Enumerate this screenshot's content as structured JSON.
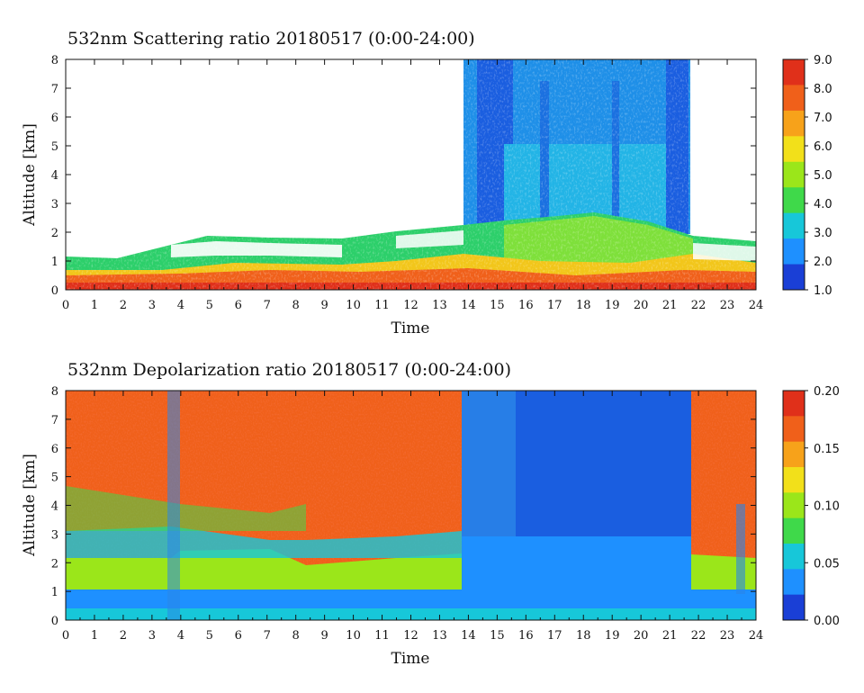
{
  "chart_data": [
    {
      "type": "heatmap",
      "title": "532nm Scattering ratio  20180517 (0:00-24:00)",
      "xlabel": "Time",
      "ylabel": "Altitude [km]",
      "xlim": [
        0,
        24
      ],
      "ylim": [
        0,
        8
      ],
      "x_ticks": [
        "0",
        "1",
        "2",
        "3",
        "4",
        "5",
        "6",
        "7",
        "8",
        "9",
        "10",
        "11",
        "12",
        "13",
        "14",
        "15",
        "16",
        "17",
        "18",
        "19",
        "20",
        "21",
        "22",
        "23",
        "24"
      ],
      "y_ticks": [
        "0",
        "1",
        "2",
        "3",
        "4",
        "5",
        "6",
        "7",
        "8"
      ],
      "colorbar": {
        "min": 1.0,
        "max": 9.0,
        "ticks": [
          "1.0",
          "2.0",
          "3.0",
          "4.0",
          "5.0",
          "6.0",
          "7.0",
          "8.0",
          "9.0"
        ],
        "colors": [
          "#1a3fd6",
          "#1e90ff",
          "#17c7d9",
          "#3fd94a",
          "#9be61a",
          "#f2e01a",
          "#f7a21a",
          "#f0601a",
          "#e0301a"
        ]
      },
      "features": {
        "cloud_top_km": 8,
        "cloud_start_hour": 13.8,
        "cloud_end_hour": 21.7,
        "boundary_layer_top_km": 1.8
      }
    },
    {
      "type": "heatmap",
      "title": "532nm Depolarization ratio  20180517 (0:00-24:00)",
      "xlabel": "Time",
      "ylabel": "Altitude [km]",
      "xlim": [
        0,
        24
      ],
      "ylim": [
        0,
        8
      ],
      "x_ticks": [
        "0",
        "1",
        "2",
        "3",
        "4",
        "5",
        "6",
        "7",
        "8",
        "9",
        "10",
        "11",
        "12",
        "13",
        "14",
        "15",
        "16",
        "17",
        "18",
        "19",
        "20",
        "21",
        "22",
        "23",
        "24"
      ],
      "y_ticks": [
        "0",
        "1",
        "2",
        "3",
        "4",
        "5",
        "6",
        "7",
        "8"
      ],
      "colorbar": {
        "min": 0.0,
        "max": 0.2,
        "ticks": [
          "0.00",
          "0.05",
          "0.10",
          "0.15",
          "0.20"
        ],
        "colors": [
          "#1a3fd6",
          "#1e90ff",
          "#17c7d9",
          "#3fd94a",
          "#9be61a",
          "#f2e01a",
          "#f7a21a",
          "#f0601a",
          "#e0301a"
        ]
      },
      "features": {
        "cloud_start_hour": 13.8,
        "cloud_end_hour": 21.7,
        "boundary_layer_top_km": 2.2
      }
    }
  ]
}
